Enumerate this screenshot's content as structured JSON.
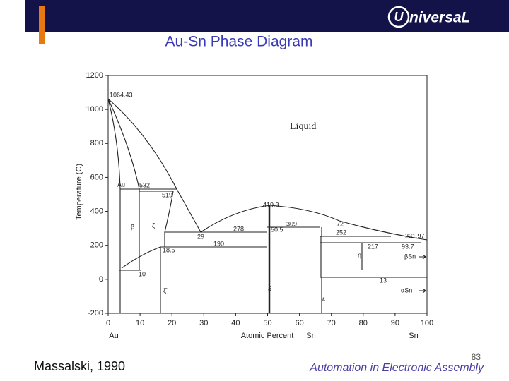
{
  "header": {
    "logo_mark": "U",
    "logo_text": "niversaL"
  },
  "chart_data": {
    "type": "phase-diagram",
    "title": "Au-Sn Phase Diagram",
    "xlabel": "Atomic Percent",
    "ylabel": "Temperature (C)",
    "x_end_labels": [
      "Au",
      "Sn",
      "Sn"
    ],
    "xlim": [
      0,
      100
    ],
    "xticks": [
      0,
      10,
      20,
      30,
      40,
      50,
      60,
      70,
      80,
      90,
      100
    ],
    "ylim": [
      -200,
      1200
    ],
    "yticks": [
      -200,
      0,
      200,
      400,
      600,
      800,
      1000,
      1200
    ],
    "grid": false,
    "annotations": [
      "1064.43",
      "Liquid",
      "Au",
      "532",
      "519",
      "419.3",
      "β",
      "ζ",
      "278",
      "50.5",
      "309",
      "72",
      "252",
      "231.97",
      "29",
      "190",
      "18.5",
      "217",
      "93.7",
      "η",
      "βSn",
      "10",
      "13",
      "δ",
      "ζ'",
      "αSn",
      "ε"
    ]
  },
  "footer": {
    "source": "Massalski, 1990",
    "page": "83",
    "tagline": "Automation in Electronic Assembly"
  }
}
